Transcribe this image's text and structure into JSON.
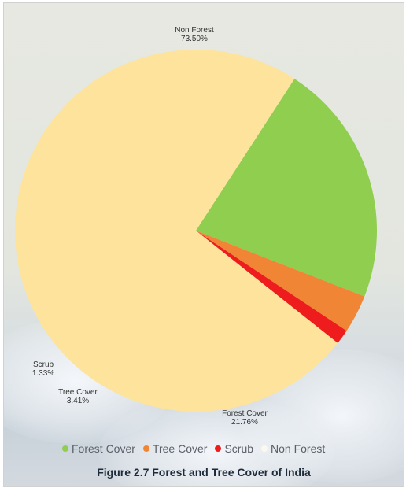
{
  "chart_data": {
    "type": "pie",
    "title": "",
    "series": [
      {
        "name": "Forest Cover",
        "value": 21.76,
        "label": "Forest Cover",
        "value_label": "21.76%",
        "color": "#8fce4f"
      },
      {
        "name": "Tree Cover",
        "value": 3.41,
        "label": "Tree Cover",
        "value_label": "3.41%",
        "color": "#ef8535"
      },
      {
        "name": "Scrub",
        "value": 1.33,
        "label": "Scrub",
        "value_label": "1.33%",
        "color": "#ee1c1c"
      },
      {
        "name": "Non Forest",
        "value": 73.5,
        "label": "Non Forest",
        "value_label": "73.50%",
        "color": "#fde39c"
      }
    ],
    "legend": {
      "position": "bottom",
      "items": [
        "Forest Cover",
        "Tree Cover",
        "Scrub",
        "Non Forest"
      ]
    }
  },
  "caption": "Figure 2.7 Forest and Tree Cover of India"
}
